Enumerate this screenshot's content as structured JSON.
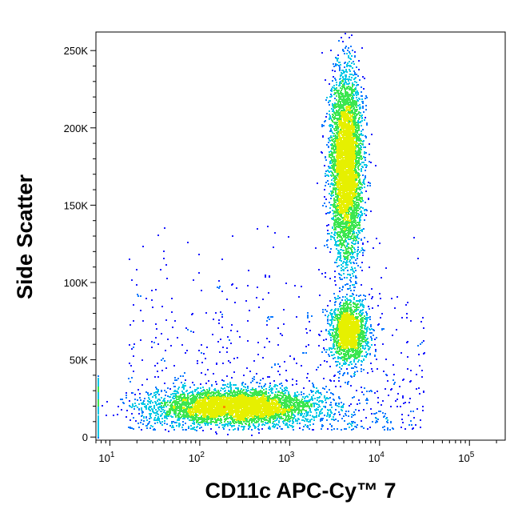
{
  "chart_data": {
    "type": "scatter",
    "subtype": "flow-cytometry density dot plot",
    "xlabel": "CD11c APC-Cy™ 7",
    "ylabel": "Side Scatter",
    "x_scale": "log",
    "y_scale": "linear",
    "xlim": [
      7,
      250000
    ],
    "ylim": [
      -2000,
      262000
    ],
    "grid": false,
    "x_ticks": [
      {
        "value": 10,
        "base": "10",
        "exp": "1"
      },
      {
        "value": 100,
        "base": "10",
        "exp": "2"
      },
      {
        "value": 1000,
        "base": "10",
        "exp": "3"
      },
      {
        "value": 10000,
        "base": "10",
        "exp": "4"
      },
      {
        "value": 100000,
        "base": "10",
        "exp": "5"
      }
    ],
    "y_ticks": [
      {
        "value": 0,
        "label": "0"
      },
      {
        "value": 50000,
        "label": "50K"
      },
      {
        "value": 100000,
        "label": "100K"
      },
      {
        "value": 150000,
        "label": "150K"
      },
      {
        "value": 200000,
        "label": "200K"
      },
      {
        "value": 250000,
        "label": "250K"
      }
    ],
    "density_colors": [
      "#1a1aff",
      "#0a78ff",
      "#00c8e6",
      "#3ce650",
      "#e6f000",
      "#ff8c00",
      "#ff2800"
    ],
    "populations": [
      {
        "x_center": 250,
        "y_center": 20000,
        "x_log_spread": 0.45,
        "y_spread": 5500,
        "count": 4200
      },
      {
        "x_center": 4200,
        "y_center": 175000,
        "x_log_spread": 0.09,
        "y_spread": 30000,
        "count": 4500
      },
      {
        "x_center": 4500,
        "y_center": 68000,
        "x_log_spread": 0.1,
        "y_spread": 10000,
        "count": 1700
      }
    ]
  }
}
